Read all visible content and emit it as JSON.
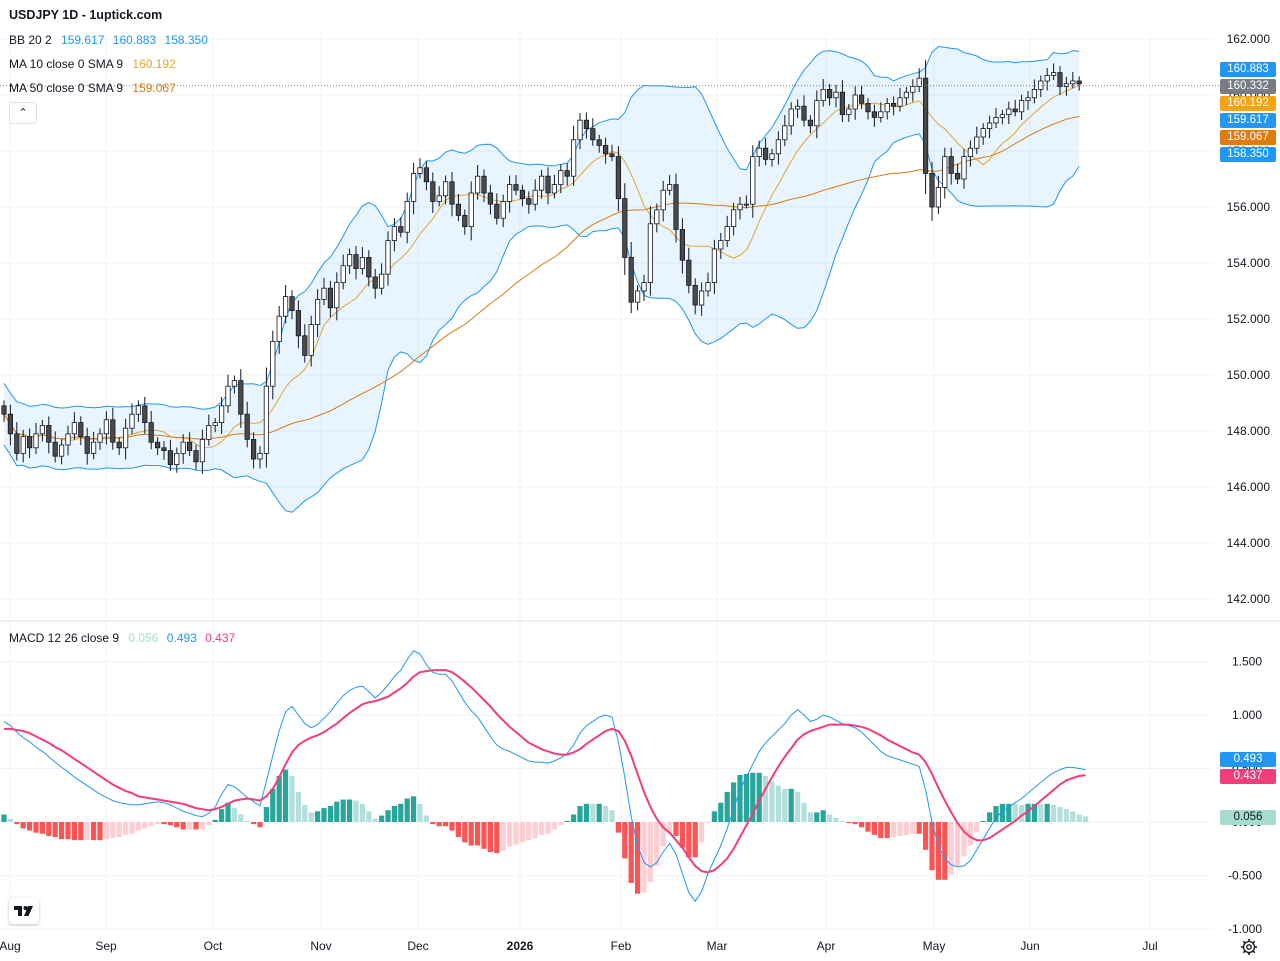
{
  "header": {
    "title": "USDJPY 1D - 1uptick.com"
  },
  "legends": {
    "bb": {
      "label": "BB 20 2",
      "values": [
        "159.617",
        "160.883",
        "158.350"
      ],
      "color": "#2196f3"
    },
    "ma10": {
      "label": "MA 10 close 0 SMA 9",
      "value": "160.192",
      "color": "#e0a82e"
    },
    "ma50": {
      "label": "MA 50 close 0 SMA 9",
      "value": "159.067",
      "color": "#d97b12"
    },
    "macd": {
      "label": "MACD 12 26 close 9",
      "hist": "0.056",
      "macd": "0.493",
      "signal": "0.437"
    }
  },
  "price_tags": [
    {
      "value": "160.883",
      "color": "#2196f3"
    },
    {
      "value": "160.332",
      "color": "#787b86"
    },
    {
      "value": "160.192",
      "color": "#f2a416"
    },
    {
      "value": "159.617",
      "color": "#2196f3"
    },
    {
      "value": "159.067",
      "color": "#e07b10"
    },
    {
      "value": "158.350",
      "color": "#2196f3"
    }
  ],
  "macd_tags": [
    {
      "value": "0.493",
      "color": "#2196f3"
    },
    {
      "value": "0.437",
      "color": "#f23e78"
    },
    {
      "value": "0.056",
      "color": "#a5dccf",
      "text": "#131722"
    }
  ],
  "icons": {
    "collapse": "chevron-up-icon",
    "logo": "tradingview-logo-icon",
    "settings": "gear-icon"
  },
  "chart_data": [
    {
      "type": "candlestick",
      "symbol": "USDJPY",
      "interval": "1D",
      "y_ticks": [
        "162.000",
        "160.000",
        "158.000",
        "156.000",
        "154.000",
        "152.000",
        "150.000",
        "148.000",
        "146.000",
        "144.000",
        "142.000"
      ],
      "ylim": [
        141.2,
        163.4
      ],
      "x_ticks": [
        "Aug",
        "Sep",
        "Oct",
        "Nov",
        "Dec",
        "2026",
        "Feb",
        "Mar",
        "Apr",
        "May",
        "Jun",
        "Jul"
      ],
      "close": [
        148.6,
        147.9,
        147.2,
        147.8,
        147.4,
        147.9,
        148.2,
        147.6,
        147.1,
        147.5,
        147.9,
        148.3,
        147.8,
        147.2,
        147.6,
        147.9,
        148.4,
        147.6,
        147.4,
        148.1,
        148.6,
        148.9,
        148.3,
        147.6,
        147.4,
        147.3,
        146.8,
        147.2,
        147.6,
        147.3,
        146.9,
        147.7,
        148.2,
        148.3,
        148.9,
        149.6,
        149.8,
        148.6,
        147.7,
        147.0,
        147.2,
        149.6,
        151.2,
        152.1,
        152.8,
        152.3,
        151.4,
        150.7,
        151.8,
        152.7,
        153.1,
        152.4,
        153.3,
        153.9,
        154.3,
        153.8,
        154.2,
        153.5,
        153.1,
        153.6,
        154.8,
        155.3,
        155.1,
        156.2,
        157.2,
        157.4,
        156.9,
        156.2,
        156.4,
        156.9,
        156.1,
        155.7,
        155.3,
        156.5,
        157.1,
        156.5,
        156.1,
        155.6,
        156.2,
        156.8,
        156.6,
        156.3,
        156.1,
        156.6,
        157.1,
        156.5,
        156.8,
        157.3,
        157.1,
        158.4,
        159.1,
        158.8,
        158.4,
        158.2,
        157.9,
        157.8,
        156.3,
        154.2,
        152.6,
        153.0,
        153.3,
        155.4,
        155.9,
        156.6,
        156.8,
        155.2,
        154.1,
        153.2,
        152.5,
        153.0,
        153.3,
        154.5,
        154.8,
        155.3,
        155.9,
        156.1,
        156.1,
        157.8,
        158.1,
        157.7,
        157.9,
        158.4,
        158.9,
        159.5,
        159.6,
        159.1,
        158.9,
        159.8,
        160.2,
        159.9,
        160.1,
        159.3,
        159.5,
        160.0,
        159.7,
        159.4,
        159.2,
        159.4,
        159.7,
        159.6,
        159.9,
        160.1,
        160.3,
        160.6,
        157.2,
        156.0,
        156.7,
        157.8,
        157.2,
        157.0,
        157.8,
        158.1,
        158.5,
        158.8,
        159.0,
        159.2,
        159.3,
        159.5,
        159.4,
        159.8,
        159.9,
        160.2,
        160.5,
        160.7,
        160.8,
        160.3,
        160.4,
        160.5,
        160.4
      ]
    },
    {
      "type": "line",
      "name": "MACD 12 26 close 9",
      "y_ticks": [
        "1.500",
        "1.000",
        "0.500",
        "0.000",
        "-0.500",
        "-1.000"
      ],
      "ylim": [
        -1.05,
        1.75
      ],
      "macd": [
        0.94,
        0.9,
        0.84,
        0.79,
        0.75,
        0.7,
        0.66,
        0.61,
        0.56,
        0.51,
        0.47,
        0.42,
        0.38,
        0.34,
        0.3,
        0.26,
        0.23,
        0.2,
        0.18,
        0.17,
        0.16,
        0.16,
        0.17,
        0.18,
        0.19,
        0.18,
        0.16,
        0.13,
        0.1,
        0.08,
        0.06,
        0.05,
        0.08,
        0.14,
        0.26,
        0.35,
        0.33,
        0.28,
        0.23,
        0.19,
        0.15,
        0.38,
        0.62,
        0.85,
        1.03,
        1.08,
        1.0,
        0.92,
        0.88,
        0.91,
        0.97,
        1.03,
        1.11,
        1.18,
        1.23,
        1.26,
        1.27,
        1.22,
        1.16,
        1.21,
        1.28,
        1.36,
        1.42,
        1.52,
        1.6,
        1.57,
        1.47,
        1.4,
        1.38,
        1.38,
        1.32,
        1.22,
        1.12,
        1.04,
        0.98,
        0.89,
        0.8,
        0.72,
        0.68,
        0.66,
        0.63,
        0.6,
        0.57,
        0.56,
        0.56,
        0.55,
        0.57,
        0.6,
        0.64,
        0.72,
        0.83,
        0.9,
        0.94,
        0.98,
        1.0,
        0.98,
        0.75,
        0.42,
        0.05,
        -0.22,
        -0.38,
        -0.42,
        -0.38,
        -0.28,
        -0.2,
        -0.3,
        -0.48,
        -0.66,
        -0.74,
        -0.65,
        -0.48,
        -0.35,
        -0.22,
        -0.06,
        0.12,
        0.3,
        0.42,
        0.54,
        0.66,
        0.74,
        0.8,
        0.86,
        0.92,
        1.0,
        1.05,
        1.0,
        0.94,
        0.96,
        1.0,
        0.98,
        0.95,
        0.92,
        0.9,
        0.88,
        0.84,
        0.78,
        0.72,
        0.66,
        0.62,
        0.6,
        0.58,
        0.56,
        0.54,
        0.52,
        0.3,
        0.0,
        -0.22,
        -0.34,
        -0.4,
        -0.42,
        -0.41,
        -0.36,
        -0.26,
        -0.16,
        -0.06,
        0.04,
        0.1,
        0.14,
        0.18,
        0.22,
        0.27,
        0.32,
        0.37,
        0.42,
        0.46,
        0.49,
        0.51,
        0.51,
        0.5,
        0.49
      ],
      "signal": [
        0.87,
        0.87,
        0.86,
        0.85,
        0.83,
        0.8,
        0.77,
        0.74,
        0.7,
        0.67,
        0.63,
        0.59,
        0.55,
        0.51,
        0.47,
        0.43,
        0.39,
        0.35,
        0.32,
        0.29,
        0.27,
        0.24,
        0.23,
        0.22,
        0.21,
        0.2,
        0.19,
        0.18,
        0.17,
        0.15,
        0.13,
        0.12,
        0.11,
        0.12,
        0.14,
        0.17,
        0.2,
        0.21,
        0.22,
        0.21,
        0.2,
        0.24,
        0.31,
        0.42,
        0.54,
        0.65,
        0.72,
        0.76,
        0.79,
        0.81,
        0.84,
        0.88,
        0.92,
        0.97,
        1.02,
        1.06,
        1.1,
        1.12,
        1.13,
        1.15,
        1.17,
        1.21,
        1.25,
        1.3,
        1.36,
        1.4,
        1.41,
        1.42,
        1.42,
        1.42,
        1.4,
        1.36,
        1.31,
        1.26,
        1.2,
        1.14,
        1.08,
        1.01,
        0.95,
        0.89,
        0.84,
        0.79,
        0.74,
        0.71,
        0.68,
        0.66,
        0.64,
        0.63,
        0.63,
        0.65,
        0.68,
        0.73,
        0.77,
        0.81,
        0.85,
        0.87,
        0.85,
        0.76,
        0.62,
        0.45,
        0.28,
        0.14,
        0.03,
        -0.05,
        -0.1,
        -0.17,
        -0.24,
        -0.33,
        -0.41,
        -0.46,
        -0.47,
        -0.45,
        -0.4,
        -0.34,
        -0.25,
        -0.14,
        -0.03,
        0.08,
        0.2,
        0.31,
        0.42,
        0.52,
        0.61,
        0.69,
        0.77,
        0.82,
        0.85,
        0.87,
        0.89,
        0.91,
        0.91,
        0.91,
        0.91,
        0.9,
        0.89,
        0.87,
        0.84,
        0.81,
        0.77,
        0.74,
        0.71,
        0.68,
        0.65,
        0.63,
        0.56,
        0.45,
        0.32,
        0.2,
        0.09,
        -0.01,
        -0.09,
        -0.14,
        -0.17,
        -0.17,
        -0.15,
        -0.11,
        -0.07,
        -0.03,
        0.01,
        0.06,
        0.1,
        0.15,
        0.2,
        0.25,
        0.3,
        0.35,
        0.39,
        0.41,
        0.43,
        0.437
      ],
      "histogram_shown": "macd - signal"
    }
  ]
}
